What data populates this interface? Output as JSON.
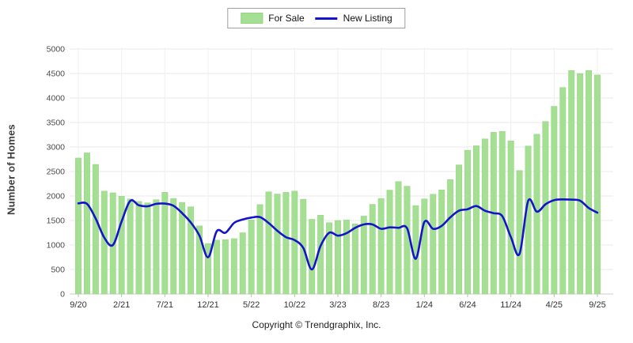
{
  "legend": {
    "for_sale": "For Sale",
    "new_listing": "New Listing"
  },
  "y_axis": {
    "title": "Number of Homes",
    "ticks": [
      "0",
      "500",
      "1000",
      "1500",
      "2000",
      "2500",
      "3000",
      "3500",
      "4000",
      "4500",
      "5000"
    ]
  },
  "footer": {
    "copyright": "Copyright © Trendgraphix, Inc."
  },
  "colors": {
    "bar_fill": "#a5df93",
    "bar_border": "#95d481",
    "line": "#1414cc",
    "grid": "#e9e9e9",
    "grid_vertical": "#f0f0f0",
    "axis_line": "#cccccc",
    "tick_text": "#4a4a4a",
    "x_label_text": "#333333"
  },
  "chart_data": {
    "type": "bar+line combo, monthly series 9/20 through 9/25",
    "x_tick_labels": [
      "9/20",
      "2/21",
      "7/21",
      "12/21",
      "5/22",
      "10/22",
      "3/23",
      "8/23",
      "1/24",
      "6/24",
      "11/24",
      "4/25",
      "9/25"
    ],
    "x_tick_every_n_points": 5,
    "ylim": [
      0,
      5000
    ],
    "ytick_step": 500,
    "grid": "horizontal solid behind bars, vertical at labeled ticks",
    "legend_position": "top-center boxed",
    "series": [
      {
        "name": "For Sale",
        "type": "bar",
        "values": [
          2775,
          2880,
          2645,
          2100,
          2065,
          1995,
          1940,
          1890,
          1860,
          1925,
          2075,
          1950,
          1870,
          1780,
          1390,
          1030,
          1100,
          1110,
          1130,
          1250,
          1510,
          1825,
          2085,
          2040,
          2075,
          2100,
          1935,
          1525,
          1610,
          1455,
          1500,
          1510,
          1430,
          1590,
          1830,
          1950,
          2120,
          2295,
          2200,
          1805,
          1940,
          2035,
          2125,
          2335,
          2635,
          2935,
          3025,
          3165,
          3300,
          3320,
          3125,
          2520,
          3020,
          3260,
          3520,
          3830,
          4215,
          4560,
          4500,
          4560,
          4470
        ]
      },
      {
        "name": "New Listing",
        "type": "line",
        "values": [
          1850,
          1840,
          1540,
          1150,
          1000,
          1480,
          1900,
          1810,
          1790,
          1840,
          1845,
          1800,
          1650,
          1460,
          1190,
          750,
          1280,
          1250,
          1450,
          1520,
          1560,
          1570,
          1450,
          1290,
          1160,
          1100,
          940,
          500,
          980,
          1250,
          1190,
          1240,
          1350,
          1420,
          1420,
          1330,
          1360,
          1350,
          1340,
          720,
          1470,
          1330,
          1390,
          1565,
          1700,
          1730,
          1795,
          1700,
          1650,
          1590,
          1160,
          820,
          1900,
          1680,
          1830,
          1915,
          1930,
          1925,
          1905,
          1755,
          1660
        ]
      }
    ]
  }
}
